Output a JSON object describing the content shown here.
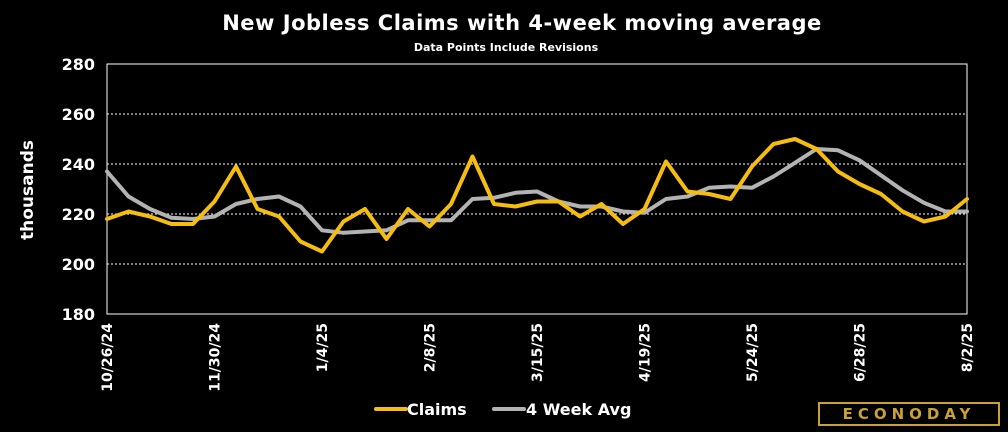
{
  "brand": {
    "logo_text": "ECONODAY",
    "logo_color": "#c9a233"
  },
  "colors": {
    "claims": "#f5bd0f",
    "avg": "#b3b3b3",
    "grid": "#ffffff",
    "background": "#000000"
  },
  "chart_data": {
    "type": "line",
    "title": "New Jobless Claims with 4-week moving average",
    "subtitle": "Data Points Include Revisions",
    "ylabel": "thousands",
    "ylim": [
      180,
      280
    ],
    "yticks": [
      180,
      200,
      220,
      240,
      260,
      280
    ],
    "x_tick_labels": [
      "10/26/24",
      "11/30/24",
      "1/4/25",
      "2/8/25",
      "3/15/25",
      "4/19/25",
      "5/24/25",
      "6/28/25",
      "8/2/25"
    ],
    "x_tick_every": 5,
    "grid": true,
    "legend_position": "bottom",
    "series": [
      {
        "name": "Claims",
        "values": [
          218,
          221,
          219,
          216,
          216,
          225,
          239,
          222,
          219,
          209,
          205,
          217,
          222,
          210,
          222,
          215,
          224,
          243,
          224,
          223,
          225,
          225,
          219,
          224,
          216,
          222,
          241,
          229,
          228,
          226,
          239,
          248,
          250,
          246,
          237,
          232,
          228,
          221,
          217,
          219,
          226
        ]
      },
      {
        "name": "4 Week Avg",
        "values": [
          237,
          227,
          222,
          218.5,
          218,
          219,
          224,
          226,
          227,
          223,
          213.5,
          212.5,
          213,
          213.5,
          217.5,
          217.5,
          217.5,
          226,
          226.5,
          228.5,
          229,
          225,
          223,
          223,
          221,
          220.5,
          226,
          227,
          230.5,
          231,
          230.5,
          235,
          240.5,
          246,
          245.5,
          241.5,
          235.5,
          229.5,
          224.5,
          221,
          221
        ]
      }
    ]
  }
}
